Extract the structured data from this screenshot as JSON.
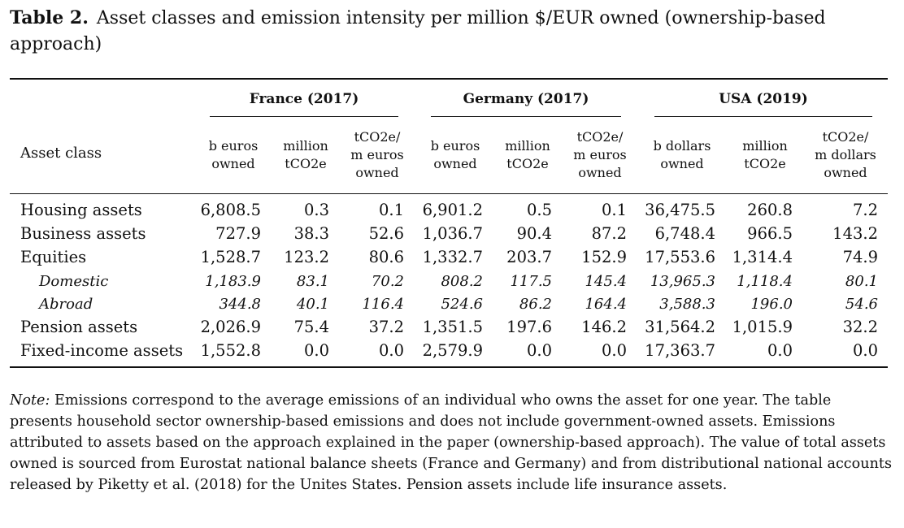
{
  "caption": {
    "label": "Table 2.",
    "text": "Asset classes and emission intensity per million $/EUR owned (ownership-based approach)"
  },
  "groups": [
    "France (2017)",
    "Germany (2017)",
    "USA (2019)"
  ],
  "asset_class_header": "Asset class",
  "subheaders": [
    [
      "b euros",
      "owned"
    ],
    [
      "million",
      "tCO2e"
    ],
    [
      "tCO2e/",
      "m euros",
      "owned"
    ],
    [
      "b euros",
      "owned"
    ],
    [
      "million",
      "tCO2e"
    ],
    [
      "tCO2e/",
      "m euros",
      "owned"
    ],
    [
      "b dollars",
      "owned"
    ],
    [
      "million",
      "tCO2e"
    ],
    [
      "tCO2e/",
      "m dollars",
      "owned"
    ]
  ],
  "rows": [
    {
      "label": "Housing assets",
      "italic": false,
      "values": [
        "6,808.5",
        "0.3",
        "0.1",
        "6,901.2",
        "0.5",
        "0.1",
        "36,475.5",
        "260.8",
        "7.2"
      ]
    },
    {
      "label": "Business assets",
      "italic": false,
      "values": [
        "727.9",
        "38.3",
        "52.6",
        "1,036.7",
        "90.4",
        "87.2",
        "6,748.4",
        "966.5",
        "143.2"
      ]
    },
    {
      "label": "Equities",
      "italic": false,
      "values": [
        "1,528.7",
        "123.2",
        "80.6",
        "1,332.7",
        "203.7",
        "152.9",
        "17,553.6",
        "1,314.4",
        "74.9"
      ]
    },
    {
      "label": "Domestic",
      "italic": true,
      "values": [
        "1,183.9",
        "83.1",
        "70.2",
        "808.2",
        "117.5",
        "145.4",
        "13,965.3",
        "1,118.4",
        "80.1"
      ]
    },
    {
      "label": "Abroad",
      "italic": true,
      "values": [
        "344.8",
        "40.1",
        "116.4",
        "524.6",
        "86.2",
        "164.4",
        "3,588.3",
        "196.0",
        "54.6"
      ]
    },
    {
      "label": "Pension assets",
      "italic": false,
      "values": [
        "2,026.9",
        "75.4",
        "37.2",
        "1,351.5",
        "197.6",
        "146.2",
        "31,564.2",
        "1,015.9",
        "32.2"
      ]
    },
    {
      "label": "Fixed-income assets",
      "italic": false,
      "values": [
        "1,552.8",
        "0.0",
        "0.0",
        "2,579.9",
        "0.0",
        "0.0",
        "17,363.7",
        "0.0",
        "0.0"
      ]
    }
  ],
  "note": {
    "label": "Note:",
    "text": "Emissions correspond to the average emissions of an individual who owns the asset for one year. The table presents household sector ownership-based emissions and does not include government-owned assets. Emissions attributed to assets based on the approach explained in the paper (ownership-based approach). The value of total assets owned is sourced from Eurostat national balance sheets (France and Germany) and from distributional national accounts released by Piketty et al. (2018) for the Unites States. Pension assets include life insurance assets."
  }
}
